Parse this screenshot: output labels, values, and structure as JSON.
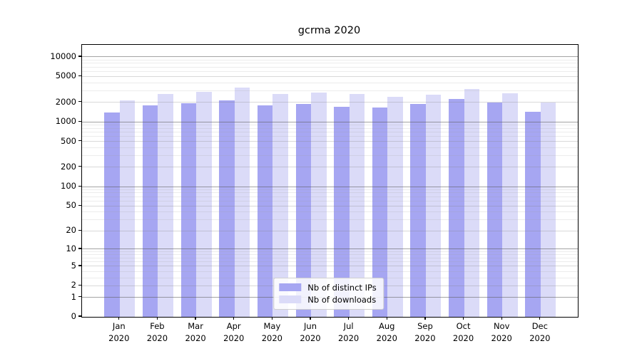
{
  "title": "gcrma 2020",
  "chart_data": {
    "type": "bar",
    "title": "gcrma 2020",
    "categories": [
      "Jan",
      "Feb",
      "Mar",
      "Apr",
      "May",
      "Jun",
      "Jul",
      "Aug",
      "Sep",
      "Oct",
      "Nov",
      "Dec"
    ],
    "category_year": "2020",
    "series": [
      {
        "name": "Nb of distinct IPs",
        "color": "#a6a6f2",
        "values": [
          1400,
          1790,
          1960,
          2170,
          1810,
          1910,
          1730,
          1660,
          1870,
          2230,
          1980,
          1440
        ]
      },
      {
        "name": "Nb of downloads",
        "color": "#dbdbf8",
        "values": [
          2120,
          2700,
          2890,
          3390,
          2660,
          2840,
          2720,
          2460,
          2640,
          3250,
          2750,
          2010
        ]
      }
    ],
    "xlabel": "",
    "ylabel": "",
    "y_axis": {
      "scale": "log1p",
      "tick_values": [
        0,
        1,
        2,
        5,
        10,
        20,
        50,
        100,
        200,
        500,
        1000,
        2000,
        5000,
        10000
      ],
      "ylim": [
        0,
        16000
      ]
    },
    "grid": true,
    "legend_position": "lower center"
  }
}
